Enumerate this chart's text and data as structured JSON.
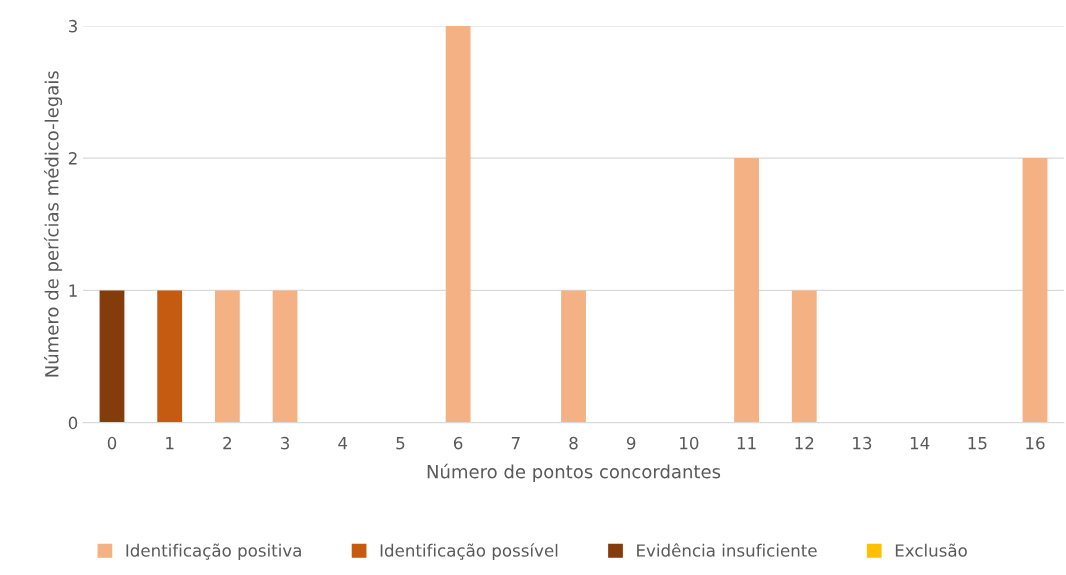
{
  "chart_data": {
    "type": "bar",
    "stacked": true,
    "xlabel": "Número de pontos concordantes",
    "ylabel": "Número de perícias médico-legais",
    "categories": [
      "0",
      "1",
      "2",
      "3",
      "4",
      "5",
      "6",
      "7",
      "8",
      "9",
      "10",
      "11",
      "12",
      "13",
      "14",
      "15",
      "16"
    ],
    "series": [
      {
        "name": "Identificação positiva",
        "color": "#f4b183",
        "values": [
          0,
          0,
          1,
          1,
          0,
          0,
          3,
          0,
          1,
          0,
          0,
          2,
          1,
          0,
          0,
          0,
          2
        ]
      },
      {
        "name": "Identificação possível",
        "color": "#c55a11",
        "values": [
          0,
          1,
          0,
          0,
          0,
          0,
          0,
          0,
          0,
          0,
          0,
          0,
          0,
          0,
          0,
          0,
          0
        ]
      },
      {
        "name": "Evidência insuficiente",
        "color": "#843c0c",
        "values": [
          1,
          0,
          0,
          0,
          0,
          0,
          0,
          0,
          0,
          0,
          0,
          0,
          0,
          0,
          0,
          0,
          0
        ]
      },
      {
        "name": "Exclusão",
        "color": "#ffc000",
        "values": [
          0,
          0,
          0,
          0,
          0,
          0,
          0,
          0,
          0,
          0,
          0,
          0,
          0,
          0,
          0,
          0,
          0
        ]
      }
    ],
    "ylim": [
      0,
      3
    ],
    "yticks": [
      0,
      1,
      2,
      3
    ],
    "grid": "y",
    "legend": "bottom"
  }
}
